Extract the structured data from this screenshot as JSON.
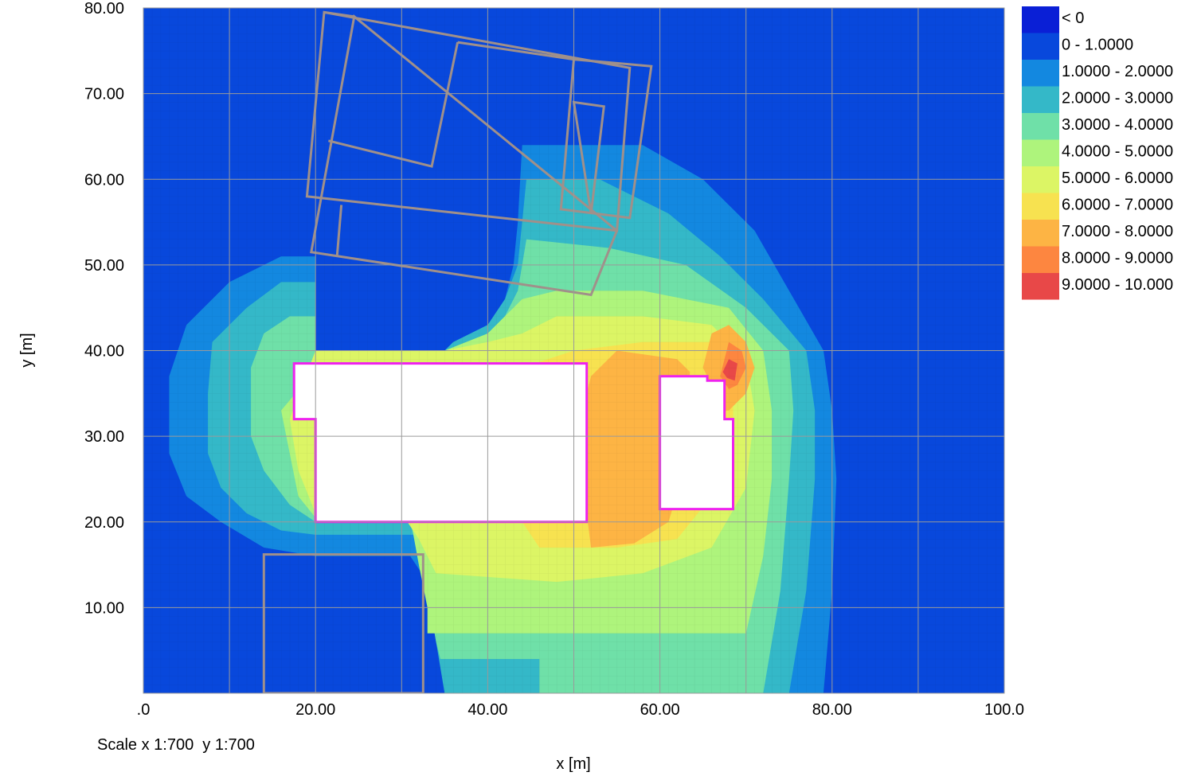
{
  "chart_data": {
    "type": "heatmap",
    "title": "",
    "xlabel": "x [m]",
    "ylabel": "y [m]",
    "xlim": [
      0,
      100
    ],
    "ylim": [
      0,
      80
    ],
    "grid": true,
    "x_tick_labels": [
      ".0",
      "20.00",
      "40.00",
      "60.00",
      "80.00",
      "100.0"
    ],
    "x_tick_values": [
      0,
      20,
      40,
      60,
      80,
      100
    ],
    "y_tick_labels": [
      "10.00",
      "20.00",
      "30.00",
      "40.00",
      "50.00",
      "60.00",
      "70.00",
      "80.00"
    ],
    "y_tick_values": [
      10,
      20,
      30,
      40,
      50,
      60,
      70,
      80
    ],
    "legend_position": "right",
    "legend": [
      {
        "label": "< 0",
        "color": "#0a1fd6"
      },
      {
        "label": "0 - 1.0000",
        "color": "#0848dc"
      },
      {
        "label": "1.0000 - 2.0000",
        "color": "#1388e0"
      },
      {
        "label": "2.0000 - 3.0000",
        "color": "#34b8c8"
      },
      {
        "label": "3.0000 - 4.0000",
        "color": "#6fe0a8"
      },
      {
        "label": "4.0000 - 5.0000",
        "color": "#aef47c"
      },
      {
        "label": "5.0000 - 6.0000",
        "color": "#dcf565"
      },
      {
        "label": "6.0000 - 7.0000",
        "color": "#f7e250"
      },
      {
        "label": "7.0000 - 8.0000",
        "color": "#fdb444"
      },
      {
        "label": "8.0000 - 9.0000",
        "color": "#fd8640"
      },
      {
        "label": "9.0000 - 10.000",
        "color": "#e84848"
      }
    ],
    "contour_bands": [
      {
        "level": 1,
        "color": "#1388e0",
        "polygon": [
          [
            46,
            0
          ],
          [
            79,
            0
          ],
          [
            80,
            12
          ],
          [
            80.5,
            25
          ],
          [
            80,
            33
          ],
          [
            79,
            40
          ],
          [
            75,
            47
          ],
          [
            71,
            54
          ],
          [
            65,
            60
          ],
          [
            58,
            64
          ],
          [
            44,
            64
          ],
          [
            43.5,
            55
          ],
          [
            43,
            50
          ],
          [
            42,
            46
          ],
          [
            40,
            43
          ],
          [
            38,
            42
          ],
          [
            36,
            41
          ],
          [
            35,
            40
          ],
          [
            20,
            40
          ],
          [
            20,
            51
          ],
          [
            16,
            51
          ],
          [
            10,
            48
          ],
          [
            5,
            43
          ],
          [
            3,
            37
          ],
          [
            3,
            28
          ],
          [
            5,
            23
          ],
          [
            9,
            20
          ],
          [
            14,
            17
          ],
          [
            20,
            16
          ],
          [
            31,
            16
          ],
          [
            33,
            13
          ],
          [
            34,
            10
          ],
          [
            34.5,
            5
          ],
          [
            35,
            0
          ]
        ]
      },
      {
        "level": 2,
        "color": "#34b8c8",
        "polygon": [
          [
            46,
            0
          ],
          [
            75,
            0
          ],
          [
            77,
            12
          ],
          [
            78,
            25
          ],
          [
            78,
            33
          ],
          [
            77,
            40
          ],
          [
            72,
            46
          ],
          [
            67,
            51
          ],
          [
            61,
            56
          ],
          [
            53,
            60
          ],
          [
            44.5,
            60
          ],
          [
            44,
            55
          ],
          [
            43.5,
            50
          ],
          [
            42,
            46
          ],
          [
            40,
            43
          ],
          [
            38,
            42
          ],
          [
            36,
            41
          ],
          [
            35,
            40
          ],
          [
            20,
            40
          ],
          [
            20,
            48
          ],
          [
            16,
            48
          ],
          [
            12,
            45
          ],
          [
            8,
            41
          ],
          [
            7.5,
            35
          ],
          [
            7.5,
            28
          ],
          [
            9,
            24
          ],
          [
            12,
            21
          ],
          [
            16,
            19
          ],
          [
            20,
            18.5
          ],
          [
            31.5,
            18.5
          ],
          [
            33,
            12
          ],
          [
            34,
            6
          ],
          [
            35,
            0
          ]
        ]
      },
      {
        "level": 3,
        "color": "#6fe0a8",
        "polygon": [
          [
            46,
            0
          ],
          [
            72,
            0
          ],
          [
            74,
            12
          ],
          [
            75,
            25
          ],
          [
            75.5,
            33
          ],
          [
            75,
            40
          ],
          [
            70,
            45
          ],
          [
            63,
            50
          ],
          [
            54,
            52
          ],
          [
            44.5,
            53
          ],
          [
            43.5,
            47
          ],
          [
            42,
            44
          ],
          [
            40,
            42
          ],
          [
            38,
            41
          ],
          [
            35,
            40
          ],
          [
            20,
            40
          ],
          [
            20,
            44
          ],
          [
            17,
            44
          ],
          [
            14,
            42
          ],
          [
            12.5,
            38
          ],
          [
            12.5,
            30
          ],
          [
            14,
            26
          ],
          [
            17,
            22
          ],
          [
            20,
            20
          ],
          [
            31,
            20
          ],
          [
            33,
            12
          ],
          [
            34,
            6
          ],
          [
            34.5,
            4
          ],
          [
            35,
            4
          ],
          [
            46,
            4
          ]
        ]
      },
      {
        "level": 4,
        "color": "#aef47c",
        "polygon": [
          [
            33,
            7
          ],
          [
            70,
            7
          ],
          [
            72,
            16
          ],
          [
            73,
            25
          ],
          [
            73,
            33
          ],
          [
            72,
            40
          ],
          [
            68,
            45
          ],
          [
            58,
            47
          ],
          [
            48,
            47
          ],
          [
            44,
            46
          ],
          [
            42,
            44
          ],
          [
            40,
            42
          ],
          [
            35,
            40
          ],
          [
            20,
            40
          ],
          [
            18.5,
            36
          ],
          [
            16,
            33
          ],
          [
            17,
            28
          ],
          [
            18,
            23
          ],
          [
            20,
            20.5
          ],
          [
            31,
            20.5
          ],
          [
            32,
            15
          ],
          [
            33,
            10
          ]
        ]
      },
      {
        "level": 5,
        "color": "#dcf565",
        "polygon": [
          [
            34,
            14
          ],
          [
            48,
            13
          ],
          [
            58,
            14
          ],
          [
            66,
            17
          ],
          [
            70,
            24
          ],
          [
            71,
            33
          ],
          [
            70,
            39
          ],
          [
            66,
            43
          ],
          [
            58,
            44
          ],
          [
            48,
            44
          ],
          [
            44,
            42
          ],
          [
            40,
            41
          ],
          [
            35,
            40
          ],
          [
            20,
            40
          ],
          [
            18.5,
            36
          ],
          [
            17,
            32
          ],
          [
            18,
            26
          ],
          [
            20,
            21
          ],
          [
            30,
            21
          ],
          [
            32,
            18
          ]
        ]
      },
      {
        "level": 6,
        "color": "#f7e250",
        "polygon": [
          [
            46,
            17
          ],
          [
            55,
            17
          ],
          [
            62,
            18
          ],
          [
            66,
            23
          ],
          [
            68.5,
            31
          ],
          [
            68.5,
            37
          ],
          [
            66,
            41
          ],
          [
            58,
            41
          ],
          [
            50,
            40
          ],
          [
            44,
            38
          ],
          [
            43,
            33
          ],
          [
            43,
            24
          ],
          [
            44,
            20
          ]
        ]
      },
      {
        "level": 7,
        "color": "#fdb444",
        "polygon": [
          [
            52,
            17
          ],
          [
            57,
            17.5
          ],
          [
            61,
            20
          ],
          [
            62.5,
            25
          ],
          [
            63,
            33
          ],
          [
            63.5,
            37.5
          ],
          [
            62,
            39
          ],
          [
            55,
            40
          ],
          [
            52,
            37
          ],
          [
            51,
            33
          ],
          [
            51,
            25
          ]
        ]
      },
      {
        "level": 7,
        "color": "#fdb444",
        "polygon": [
          [
            65,
            38
          ],
          [
            66,
            42
          ],
          [
            68,
            43
          ],
          [
            70,
            41
          ],
          [
            71,
            38
          ],
          [
            70,
            35
          ],
          [
            68,
            33
          ],
          [
            67,
            33
          ],
          [
            66,
            36
          ]
        ]
      },
      {
        "level": 8,
        "color": "#fd8640",
        "polygon": [
          [
            67,
            37
          ],
          [
            68,
            41
          ],
          [
            69.5,
            40
          ],
          [
            70,
            38
          ],
          [
            69,
            36
          ],
          [
            68,
            35.5
          ]
        ]
      },
      {
        "level": 9,
        "color": "#e84848",
        "polygon": [
          [
            67.3,
            37.5
          ],
          [
            68,
            39
          ],
          [
            69,
            38.5
          ],
          [
            68.7,
            36.5
          ],
          [
            67.8,
            36.8
          ]
        ]
      }
    ],
    "buildings_evaluated": [
      {
        "polygon": [
          [
            17.5,
            38.5
          ],
          [
            51.5,
            38.5
          ],
          [
            51.5,
            20
          ],
          [
            20,
            20
          ],
          [
            20,
            32
          ],
          [
            17.5,
            32
          ]
        ]
      },
      {
        "polygon": [
          [
            60,
            37
          ],
          [
            65.5,
            37
          ],
          [
            65.5,
            36.5
          ],
          [
            67.5,
            36.5
          ],
          [
            67.5,
            32
          ],
          [
            68.5,
            32
          ],
          [
            68.5,
            21.5
          ],
          [
            60,
            21.5
          ]
        ]
      }
    ],
    "buildings_other": [
      {
        "polygon": [
          [
            21,
            79.5
          ],
          [
            56.5,
            73
          ],
          [
            55,
            54
          ],
          [
            19,
            58
          ]
        ]
      },
      {
        "polygon": [
          [
            21,
            79.5
          ],
          [
            24.5,
            79
          ]
        ]
      },
      {
        "polygon": [
          [
            24.5,
            79
          ],
          [
            19.5,
            51.5
          ],
          [
            52,
            46.5
          ],
          [
            55,
            54
          ]
        ]
      },
      {
        "polygon": [
          [
            36.5,
            76
          ],
          [
            50,
            74
          ]
        ]
      },
      {
        "polygon": [
          [
            36.5,
            76
          ],
          [
            33.5,
            61.5
          ],
          [
            21.5,
            64.5
          ]
        ]
      },
      {
        "polygon": [
          [
            50,
            74
          ],
          [
            59,
            73.2
          ],
          [
            56.5,
            55.5
          ],
          [
            48.5,
            56.5
          ],
          [
            50,
            74
          ]
        ]
      },
      {
        "polygon": [
          [
            50,
            69
          ],
          [
            53.5,
            68.5
          ],
          [
            52,
            56
          ]
        ]
      },
      {
        "polygon": [
          [
            23,
            57
          ],
          [
            22.5,
            51
          ]
        ]
      },
      {
        "polygon": [
          [
            14,
            0
          ],
          [
            14,
            16.2
          ],
          [
            32.5,
            16.2
          ],
          [
            32.5,
            0
          ]
        ]
      }
    ]
  },
  "axes": {
    "x_title": "x [m]",
    "y_title": "y [m]"
  },
  "footer": {
    "scale_text": "Scale x 1:700  y 1:700"
  }
}
